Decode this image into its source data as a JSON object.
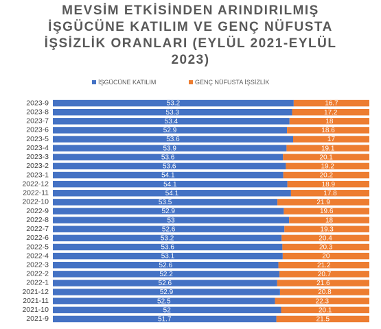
{
  "chart_data": {
    "type": "bar",
    "orientation": "horizontal",
    "stacking": "percent",
    "title": "MEVSİM ETKİSİNDEN ARINDIRILMIŞ İŞGÜCÜNE KATILIM VE GENÇ NÜFUSTA İŞSİZLİK ORANLARI (EYLÜL 2021-EYLÜL 2023)",
    "legend": "top",
    "categories": [
      "2023-9",
      "2023-8",
      "2023-7",
      "2023-6",
      "2023-5",
      "2023-4",
      "2023-3",
      "2023-2",
      "2023-1",
      "2022-12",
      "2022-11",
      "2022-10",
      "2022-9",
      "2022-8",
      "2022-7",
      "2022-6",
      "2022-5",
      "2022-4",
      "2022-3",
      "2022-2",
      "2022-1",
      "2021-12",
      "2021-11",
      "2021-10",
      "2021-9"
    ],
    "series": [
      {
        "name": "İŞGÜCÜNE KATILIM",
        "color": "#4472c4",
        "values": [
          53.2,
          53.3,
          53.4,
          52.9,
          53.6,
          53.9,
          53.6,
          53.6,
          54.1,
          54.1,
          54.1,
          53.5,
          52.9,
          53,
          52.6,
          53.2,
          53.6,
          53.1,
          52.6,
          52.2,
          52.6,
          52.9,
          52.5,
          52,
          51.7
        ]
      },
      {
        "name": "GENÇ NÜFUSTA İŞSİZLİK",
        "color": "#ed7d31",
        "values": [
          16.7,
          17.2,
          18,
          18.6,
          17,
          19.1,
          20.1,
          19.2,
          20.2,
          18.9,
          17.8,
          21.9,
          19.6,
          18,
          19.3,
          20.4,
          20.3,
          20,
          21.2,
          20.7,
          21.6,
          20.8,
          22.3,
          20.1,
          21.5
        ]
      }
    ]
  }
}
